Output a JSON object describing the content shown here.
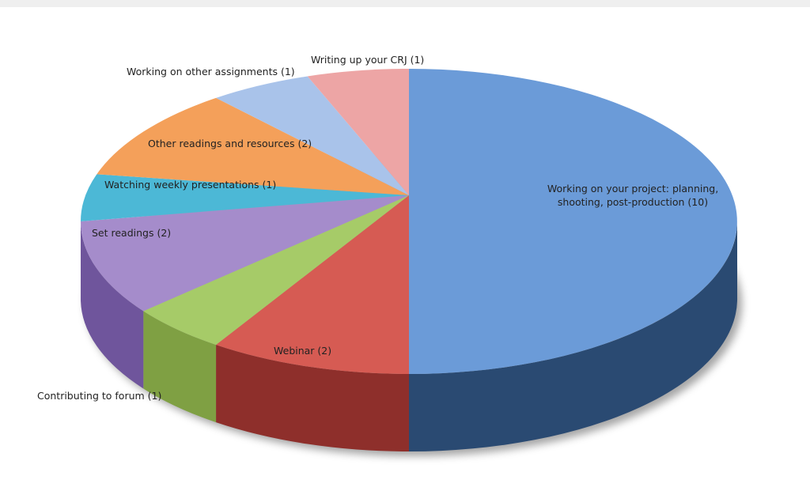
{
  "chart_data": {
    "type": "pie",
    "style": "3d",
    "title": "",
    "total": 20,
    "slices": [
      {
        "label": "Working on your project: planning, shooting, post-production",
        "value": 10,
        "color": "#6b9bd8",
        "side": "#2a4a72"
      },
      {
        "label": "Webinar",
        "value": 2,
        "color": "#d65b53",
        "side": "#8e2f2b"
      },
      {
        "label": "Contributing to forum",
        "value": 1,
        "color": "#a6cb68",
        "side": "#7fa043"
      },
      {
        "label": "Set readings",
        "value": 2,
        "color": "#a58ccb",
        "side": "#6f559c"
      },
      {
        "label": "Watching weekly presentations",
        "value": 1,
        "color": "#4cb8d6",
        "side": "#2c86a0"
      },
      {
        "label": "Other readings and resources",
        "value": 2,
        "color": "#f4a05a",
        "side": "#c0702e"
      },
      {
        "label": "Working on other assignments",
        "value": 1,
        "color": "#a9c3ea",
        "side": "#7a94bd"
      },
      {
        "label": "Writing up your CRJ",
        "value": 1,
        "color": "#eda5a5",
        "side": "#b76f6f"
      }
    ]
  },
  "labels": {
    "project": "Working on your project: planning,",
    "project2": "shooting, post-production (10)",
    "webinar": "Webinar (2)",
    "forum": "Contributing to forum (1)",
    "set": "Set readings (2)",
    "weekly": "Watching weekly presentations (1)",
    "other": "Other readings and resources (2)",
    "assign": "Working on other assignments (1)",
    "crj": "Writing up your CRJ (1)"
  }
}
